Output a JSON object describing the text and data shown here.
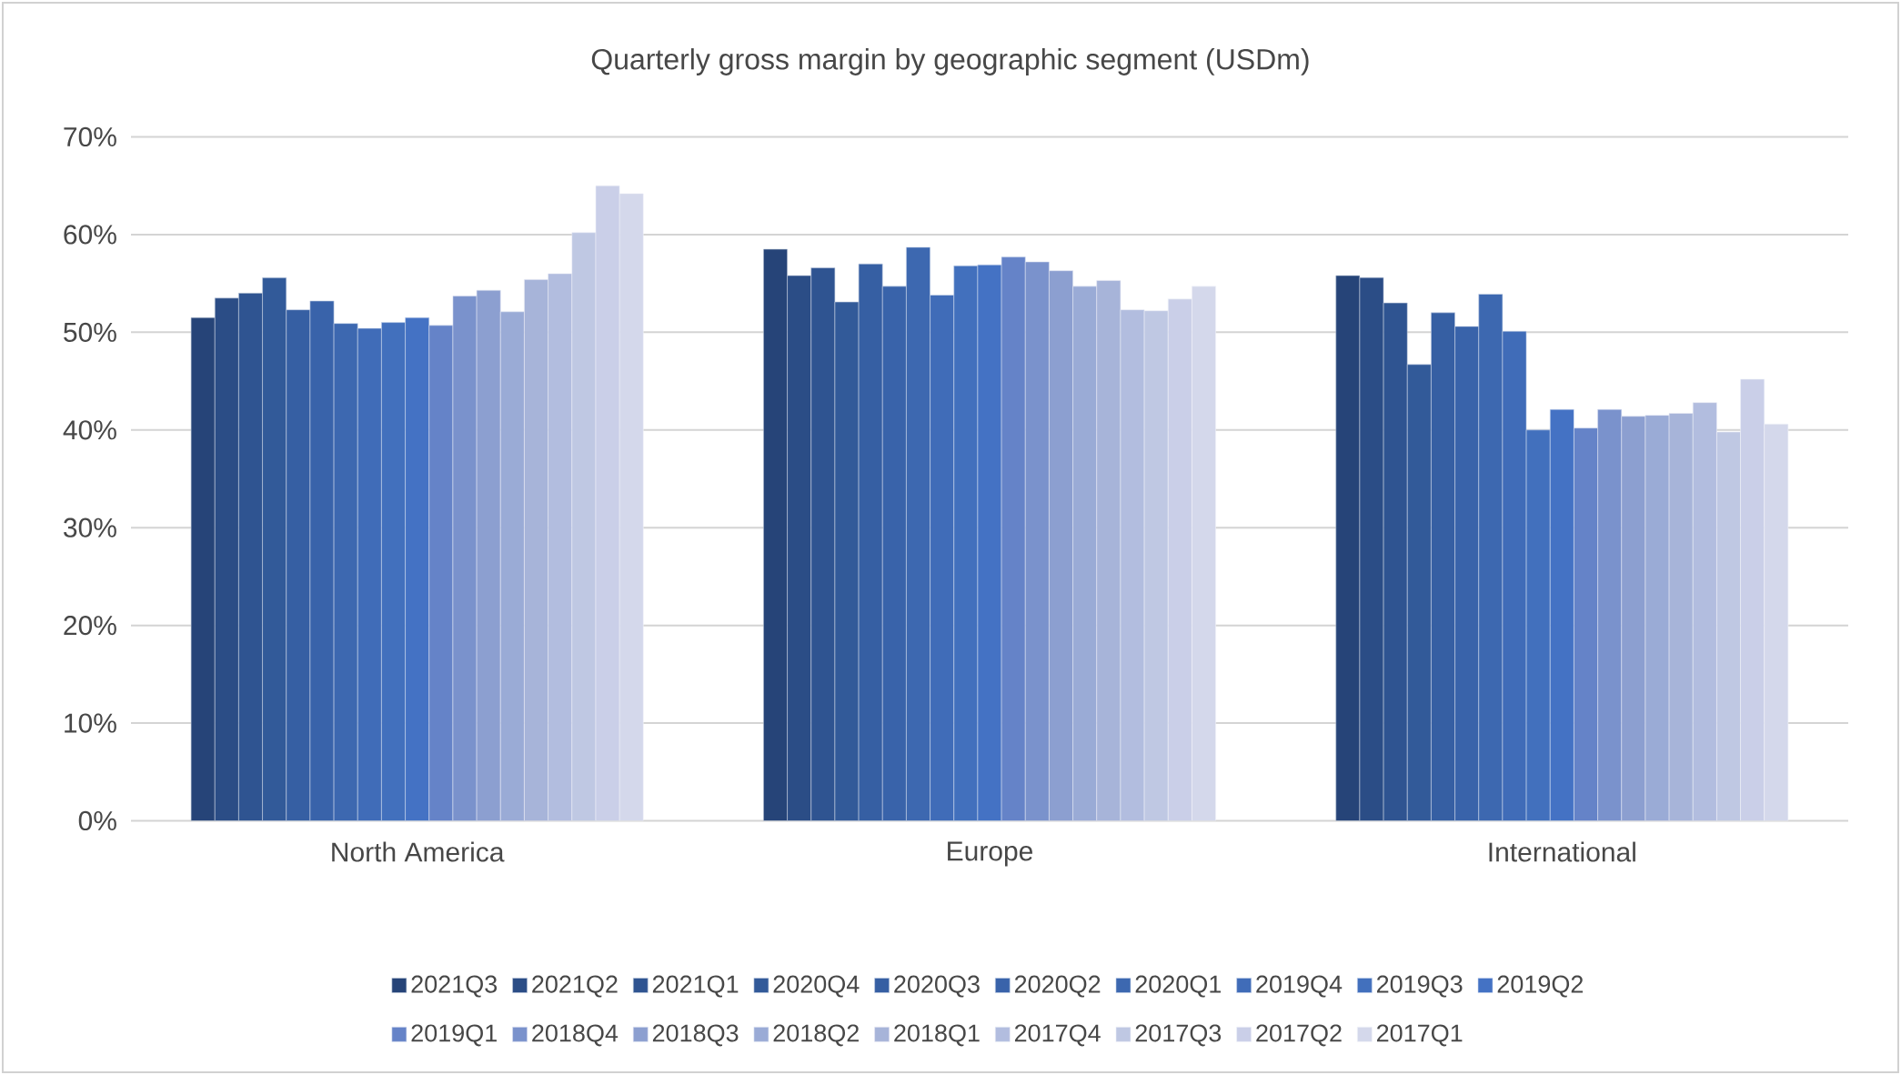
{
  "chart_data": {
    "type": "bar",
    "title": "Quarterly gross margin by geographic segment (USDm)",
    "categories": [
      "North America",
      "Europe",
      "International"
    ],
    "series": [
      {
        "name": "2021Q3",
        "color": "#264478",
        "values": [
          51.5,
          58.5,
          55.8
        ]
      },
      {
        "name": "2021Q2",
        "color": "#2b4d86",
        "values": [
          53.5,
          55.8,
          55.6
        ]
      },
      {
        "name": "2021Q1",
        "color": "#2f5491",
        "values": [
          54.0,
          56.6,
          53.0
        ]
      },
      {
        "name": "2020Q4",
        "color": "#325a99",
        "values": [
          55.6,
          53.1,
          46.7
        ]
      },
      {
        "name": "2020Q3",
        "color": "#365fa3",
        "values": [
          52.3,
          57.0,
          52.0
        ]
      },
      {
        "name": "2020Q2",
        "color": "#3963aa",
        "values": [
          53.2,
          54.7,
          50.6
        ]
      },
      {
        "name": "2020Q1",
        "color": "#3d68b0",
        "values": [
          50.9,
          58.7,
          53.9
        ]
      },
      {
        "name": "2019Q4",
        "color": "#406cb8",
        "values": [
          50.4,
          53.8,
          50.1
        ]
      },
      {
        "name": "2019Q3",
        "color": "#4270bd",
        "values": [
          51.0,
          56.8,
          40.0
        ]
      },
      {
        "name": "2019Q2",
        "color": "#4472c4",
        "values": [
          51.5,
          56.9,
          42.1
        ]
      },
      {
        "name": "2019Q1",
        "color": "#6583c8",
        "values": [
          50.7,
          57.7,
          40.2
        ]
      },
      {
        "name": "2018Q4",
        "color": "#7a92cc",
        "values": [
          53.7,
          57.2,
          42.1
        ]
      },
      {
        "name": "2018Q3",
        "color": "#8c9fd0",
        "values": [
          54.3,
          56.3,
          41.4
        ]
      },
      {
        "name": "2018Q2",
        "color": "#9aabd6",
        "values": [
          52.1,
          54.7,
          41.5
        ]
      },
      {
        "name": "2018Q1",
        "color": "#a7b4d9",
        "values": [
          55.4,
          55.3,
          41.7
        ]
      },
      {
        "name": "2017Q4",
        "color": "#b2bddf",
        "values": [
          56.0,
          52.3,
          42.8
        ]
      },
      {
        "name": "2017Q3",
        "color": "#bfc8e3",
        "values": [
          60.2,
          52.2,
          39.8
        ]
      },
      {
        "name": "2017Q2",
        "color": "#cacfe8",
        "values": [
          65.0,
          53.4,
          45.2
        ]
      },
      {
        "name": "2017Q1",
        "color": "#d4d8eb",
        "values": [
          64.2,
          54.7,
          40.6
        ]
      }
    ],
    "ylim": [
      0,
      70
    ],
    "yticks": [
      {
        "value": 0,
        "label": "0%"
      },
      {
        "value": 10,
        "label": "10%"
      },
      {
        "value": 20,
        "label": "20%"
      },
      {
        "value": 30,
        "label": "30%"
      },
      {
        "value": 40,
        "label": "40%"
      },
      {
        "value": 50,
        "label": "50%"
      },
      {
        "value": 60,
        "label": "60%"
      },
      {
        "value": 70,
        "label": "70%"
      }
    ],
    "grid": "y",
    "legend": "bottom"
  }
}
